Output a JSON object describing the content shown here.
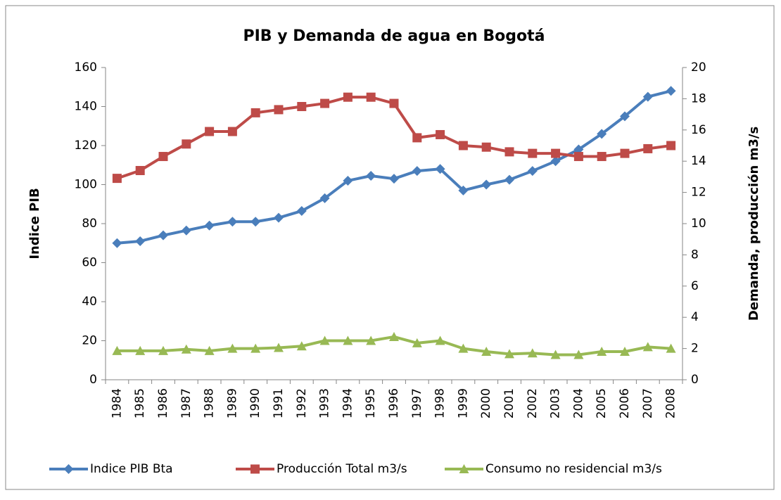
{
  "chart_data": {
    "type": "line",
    "title": "PIB y Demanda de agua en Bogotá",
    "ylabel": "Indice PIB",
    "y2label": "Demanda, producción  m3/s",
    "categories": [
      "1984",
      "1985",
      "1986",
      "1987",
      "1988",
      "1989",
      "1990",
      "1991",
      "1992",
      "1993",
      "1994",
      "1995",
      "1996",
      "1997",
      "1998",
      "1999",
      "2000",
      "2001",
      "2002",
      "2003",
      "2004",
      "2005",
      "2006",
      "2007",
      "2008"
    ],
    "ylim": [
      0,
      160
    ],
    "yticks": [
      0,
      20,
      40,
      60,
      80,
      100,
      120,
      140,
      160
    ],
    "y2lim": [
      0,
      20
    ],
    "y2ticks": [
      0,
      2,
      4,
      6,
      8,
      10,
      12,
      14,
      16,
      18,
      20
    ],
    "grid": false,
    "legend": "bottom",
    "series": [
      {
        "name": "Indice PIB Bta",
        "color": "#4a7ebb",
        "marker": "diamond",
        "axis": "y",
        "values": [
          70,
          71,
          74,
          76.5,
          79,
          81,
          81,
          83,
          86.5,
          93,
          102,
          104.5,
          103,
          107,
          108,
          97,
          100,
          102.5,
          107,
          112,
          118,
          126,
          135,
          145,
          148
        ]
      },
      {
        "name": "Producción Total m3/s",
        "color": "#be4b48",
        "marker": "square",
        "axis": "y2",
        "values": [
          12.9,
          13.4,
          14.3,
          15.1,
          15.9,
          15.9,
          17.1,
          17.3,
          17.5,
          17.7,
          18.1,
          18.1,
          17.7,
          15.5,
          15.7,
          15.0,
          14.9,
          14.6,
          14.5,
          14.5,
          14.3,
          14.3,
          14.5,
          14.8,
          15.0
        ]
      },
      {
        "name": "Consumo no residencial m3/s",
        "color": "#98b954",
        "marker": "triangle",
        "axis": "y2",
        "values": [
          1.85,
          1.85,
          1.85,
          1.95,
          1.85,
          2.0,
          2.0,
          2.05,
          2.15,
          2.5,
          2.5,
          2.5,
          2.75,
          2.35,
          2.5,
          2.0,
          1.8,
          1.65,
          1.7,
          1.6,
          1.6,
          1.8,
          1.8,
          2.1,
          2.0
        ]
      }
    ]
  }
}
